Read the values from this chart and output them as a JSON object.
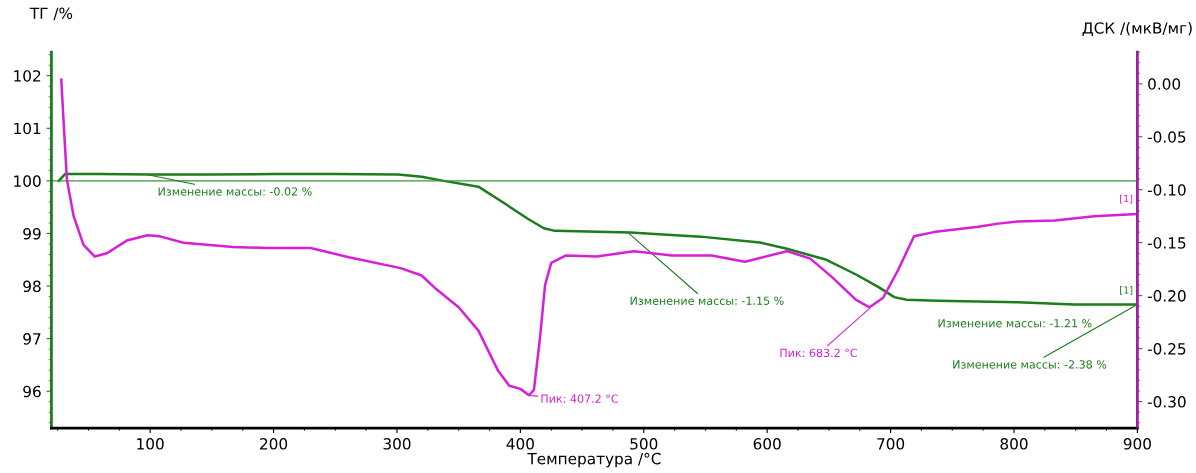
{
  "chart_data": {
    "type": "line",
    "xlabel": "Температура /°C",
    "ylabel": "ТГ /%",
    "y2label": "ДСК /(мкВ/мг)",
    "xlim": [
      20,
      900
    ],
    "xticks": [
      100,
      200,
      300,
      400,
      500,
      600,
      700,
      800,
      900
    ],
    "ylim": [
      95.3,
      102.45
    ],
    "yticks": [
      96,
      97,
      98,
      99,
      100,
      101,
      102
    ],
    "y2lim": [
      -0.325,
      0.03
    ],
    "y2ticks": [
      {
        "value": 0,
        "label": "0.00"
      },
      {
        "value": -0.05,
        "label": "-0.05"
      },
      {
        "value": -0.1,
        "label": "-0.10"
      },
      {
        "value": -0.15,
        "label": "-0.15"
      },
      {
        "value": -0.2,
        "label": "-0.20"
      },
      {
        "value": -0.25,
        "label": "-0.25"
      },
      {
        "value": -0.3,
        "label": "-0.30"
      }
    ],
    "grid": false,
    "legend": false,
    "series": [
      {
        "color": "#1b7d1b",
        "x": [
          26,
          31,
          60,
          100,
          150,
          200,
          250,
          301,
          320,
          338,
          366,
          388,
          406,
          419,
          428,
          489,
          546,
          594,
          616,
          648,
          672,
          691,
          703,
          713,
          738,
          803,
          849,
          899
        ],
        "values": [
          100.0,
          100.13,
          100.13,
          100.12,
          100.12,
          100.13,
          100.13,
          100.12,
          100.08,
          100.0,
          99.89,
          99.56,
          99.28,
          99.1,
          99.05,
          99.02,
          98.94,
          98.83,
          98.71,
          98.5,
          98.22,
          97.97,
          97.79,
          97.74,
          97.72,
          97.69,
          97.65,
          97.65
        ]
      },
      {
        "color": "#d61fd6",
        "axis": "y2",
        "x": [
          28,
          29.7,
          32.5,
          38,
          46,
          55,
          65,
          81,
          98,
          108,
          127,
          167,
          195,
          230,
          262,
          303,
          320,
          332,
          350,
          366,
          382,
          391,
          400,
          407,
          411,
          416,
          420,
          425,
          437,
          462,
          492,
          523,
          555,
          582,
          616,
          635,
          653,
          672,
          683,
          694,
          706,
          719,
          735,
          771,
          787,
          803,
          833,
          865,
          899
        ],
        "values": [
          0.004,
          -0.032,
          -0.09,
          -0.125,
          -0.152,
          -0.163,
          -0.16,
          -0.148,
          -0.143,
          -0.144,
          -0.15,
          -0.154,
          -0.155,
          -0.155,
          -0.164,
          -0.174,
          -0.181,
          -0.194,
          -0.211,
          -0.233,
          -0.271,
          -0.285,
          -0.288,
          -0.294,
          -0.289,
          -0.239,
          -0.19,
          -0.169,
          -0.162,
          -0.163,
          -0.158,
          -0.162,
          -0.162,
          -0.168,
          -0.158,
          -0.165,
          -0.183,
          -0.204,
          -0.211,
          -0.202,
          -0.176,
          -0.144,
          -0.14,
          -0.135,
          -0.132,
          -0.13,
          -0.129,
          -0.125,
          -0.123
        ]
      }
    ],
    "ref_lines": [
      {
        "axis": "y",
        "value": 100.0,
        "color": "#3c963c"
      }
    ],
    "annotations": [
      {
        "text": "Изменение массы: -0.02 %",
        "x": 97,
        "y": 100.12
      },
      {
        "text": "Изменение массы: -1.15 %",
        "x": 487,
        "y": 99.02
      },
      {
        "text": "Изменение массы: -1.21 %",
        "x": 738,
        "y": 97.72
      },
      {
        "text": "Изменение массы: -2.38 %",
        "x": 900,
        "y": 97.65
      },
      {
        "text": "Пик: 407.2 °C",
        "x": 407.2,
        "y": 95.92
      },
      {
        "text": "Пик: 683.2 °C",
        "x": 683.2,
        "y": 97.58
      },
      "[1]",
      "[1]"
    ]
  }
}
